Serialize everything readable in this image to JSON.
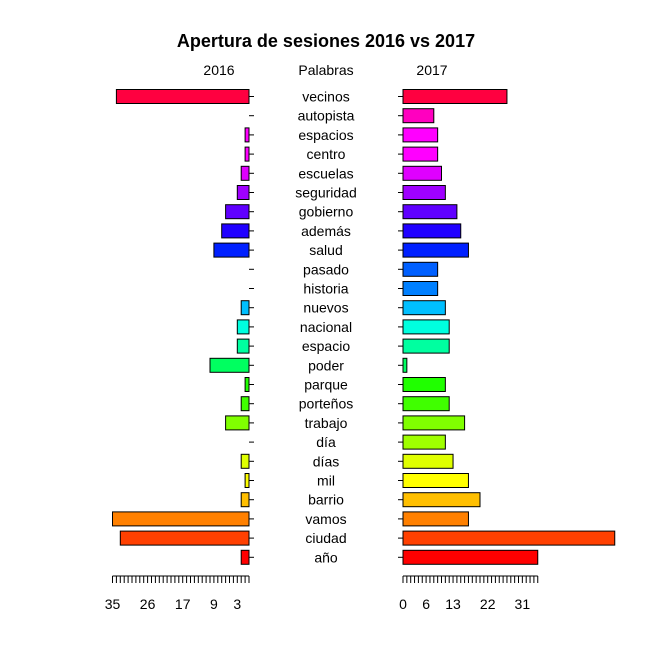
{
  "chart_data": {
    "type": "bar",
    "orientation": "horizontal-back-to-back",
    "title": "Apertura de sesiones 2016 vs 2017",
    "left_header": "2016",
    "center_header": "Palabras",
    "right_header": "2017",
    "categories": [
      "vecinos",
      "autopista",
      "espacios",
      "centro",
      "escuelas",
      "seguridad",
      "gobierno",
      "además",
      "salud",
      "pasado",
      "historia",
      "nuevos",
      "nacional",
      "espacio",
      "poder",
      "parque",
      "porteños",
      "trabajo",
      "día",
      "días",
      "mil",
      "barrio",
      "vamos",
      "ciudad",
      "año"
    ],
    "series": [
      {
        "name": "2016",
        "values": [
          34,
          0,
          1,
          1,
          2,
          3,
          6,
          7,
          9,
          0,
          0,
          2,
          3,
          3,
          10,
          1,
          2,
          6,
          0,
          2,
          1,
          2,
          35,
          33,
          2
        ]
      },
      {
        "name": "2017",
        "values": [
          27,
          8,
          9,
          9,
          10,
          11,
          14,
          15,
          17,
          9,
          9,
          11,
          12,
          12,
          1,
          11,
          12,
          16,
          11,
          13,
          17,
          20,
          17,
          55,
          35
        ]
      }
    ],
    "colors": [
      "#FF0040",
      "#FF00BF",
      "#FF00FF",
      "#FF00FF",
      "#DF00FF",
      "#9F00FF",
      "#6000FF",
      "#2000FF",
      "#0020FF",
      "#0060FF",
      "#0080FF",
      "#00BFFF",
      "#00FFDF",
      "#00FFA0",
      "#00FF60",
      "#20FF00",
      "#40FF00",
      "#80FF00",
      "#9FFF00",
      "#DFFF00",
      "#FFFF00",
      "#FFBF00",
      "#FF8000",
      "#FF4000",
      "#FF0000"
    ],
    "left_axis": {
      "ticks": [
        35,
        26,
        17,
        9,
        3
      ],
      "range": [
        0,
        35
      ]
    },
    "right_axis": {
      "ticks": [
        0,
        6,
        13,
        22,
        31
      ],
      "range": [
        0,
        55
      ]
    },
    "grid": false,
    "legend": "none"
  }
}
